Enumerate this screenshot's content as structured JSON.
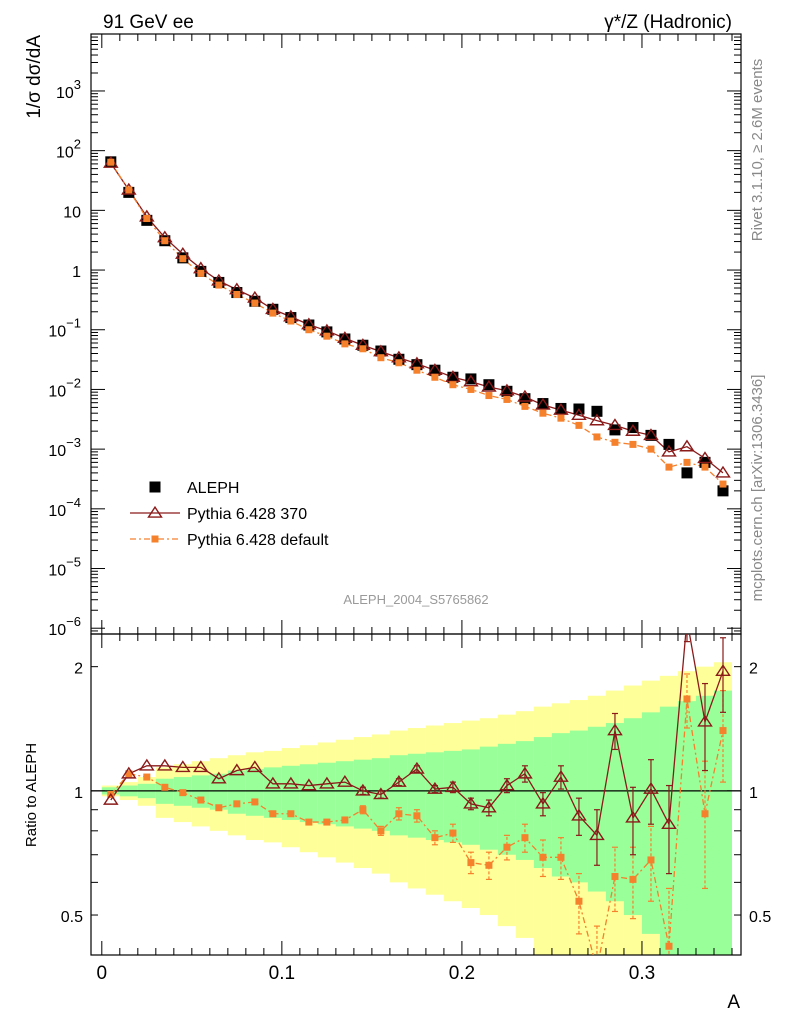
{
  "header": {
    "left": "91 GeV ee",
    "right": "γ*/Z (Hadronic)"
  },
  "side_labels": {
    "rivet": "Rivet 3.1.10, ≥ 2.6M events",
    "mcplots": "mcplots.cern.ch [arXiv:1306.3436]"
  },
  "analysis_id": "ALEPH_2004_S5765862",
  "chart_data": [
    {
      "type": "scatter",
      "title": "",
      "xlabel": "A",
      "ylabel": "1/σ  dσ/dA",
      "yscale": "log",
      "xlim": [
        -0.006,
        0.355
      ],
      "ylim": [
        8e-07,
        9000
      ],
      "yticks": [
        {
          "value": 1e-06,
          "label": "10",
          "exp": "−6"
        },
        {
          "value": 1e-05,
          "label": "10",
          "exp": "−5"
        },
        {
          "value": 0.0001,
          "label": "10",
          "exp": "−4"
        },
        {
          "value": 0.001,
          "label": "10",
          "exp": "−3"
        },
        {
          "value": 0.01,
          "label": "10",
          "exp": "−2"
        },
        {
          "value": 0.1,
          "label": "10",
          "exp": "−1"
        },
        {
          "value": 1,
          "label": "1",
          "exp": ""
        },
        {
          "value": 10,
          "label": "10",
          "exp": ""
        },
        {
          "value": 100,
          "label": "10",
          "exp": "2"
        },
        {
          "value": 1000,
          "label": "10",
          "exp": "3"
        }
      ],
      "legend_position": "lower-left",
      "x": [
        0.005,
        0.015,
        0.025,
        0.035,
        0.045,
        0.055,
        0.065,
        0.075,
        0.085,
        0.095,
        0.105,
        0.115,
        0.125,
        0.135,
        0.145,
        0.155,
        0.165,
        0.175,
        0.185,
        0.195,
        0.205,
        0.215,
        0.225,
        0.235,
        0.245,
        0.255,
        0.265,
        0.275,
        0.285,
        0.295,
        0.305,
        0.315,
        0.325,
        0.335,
        0.345
      ],
      "series": [
        {
          "name": "ALEPH",
          "marker": "square",
          "color": "#000000",
          "values": [
            65,
            20,
            6.8,
            3.1,
            1.6,
            0.95,
            0.62,
            0.42,
            0.3,
            0.22,
            0.16,
            0.12,
            0.092,
            0.07,
            0.055,
            0.044,
            0.032,
            0.026,
            0.021,
            0.016,
            0.015,
            0.012,
            0.0093,
            0.007,
            0.0058,
            0.0048,
            0.0047,
            0.0043,
            0.0021,
            0.0023,
            0.0017,
            0.0012,
            0.0004,
            0.0006,
            0.0002
          ]
        },
        {
          "name": "Pythia 6.428 370",
          "marker": "open-triangle",
          "color": "#8b1a1a",
          "values": [
            62,
            22,
            7.8,
            3.5,
            1.85,
            1.06,
            0.66,
            0.47,
            0.34,
            0.22,
            0.165,
            0.122,
            0.096,
            0.072,
            0.055,
            0.043,
            0.034,
            0.027,
            0.021,
            0.016,
            0.0135,
            0.011,
            0.0095,
            0.0075,
            0.0055,
            0.0045,
            0.0037,
            0.003,
            0.0025,
            0.002,
            0.0017,
            0.0009,
            0.0011,
            0.0007,
            0.0004
          ]
        },
        {
          "name": "Pythia 6.428 default",
          "marker": "filled-square-dashed",
          "color": "#f5812d",
          "values": [
            64,
            22,
            7.3,
            3.1,
            1.55,
            0.88,
            0.56,
            0.39,
            0.28,
            0.19,
            0.14,
            0.1,
            0.078,
            0.058,
            0.048,
            0.034,
            0.028,
            0.021,
            0.016,
            0.012,
            0.01,
            0.0079,
            0.0068,
            0.0052,
            0.004,
            0.0033,
            0.0025,
            0.0016,
            0.0013,
            0.0012,
            0.001,
            0.0005,
            0.0006,
            0.0005,
            0.00026
          ]
        }
      ]
    },
    {
      "type": "scatter",
      "title": "",
      "xlabel": "A",
      "ylabel": "Ratio to ALEPH",
      "yscale": "log",
      "xlim": [
        -0.006,
        0.355
      ],
      "ylim": [
        0.4,
        2.4
      ],
      "xticks": [
        {
          "value": 0,
          "label": "0"
        },
        {
          "value": 0.1,
          "label": "0.1"
        },
        {
          "value": 0.2,
          "label": "0.2"
        },
        {
          "value": 0.3,
          "label": "0.3"
        }
      ],
      "yticks": [
        {
          "value": 0.5,
          "label": "0.5"
        },
        {
          "value": 1,
          "label": "1"
        },
        {
          "value": 2,
          "label": "2"
        }
      ],
      "bin_edges": [
        0,
        0.01,
        0.02,
        0.03,
        0.04,
        0.05,
        0.06,
        0.07,
        0.08,
        0.09,
        0.1,
        0.11,
        0.12,
        0.13,
        0.14,
        0.15,
        0.16,
        0.17,
        0.18,
        0.19,
        0.2,
        0.21,
        0.22,
        0.23,
        0.24,
        0.25,
        0.26,
        0.27,
        0.28,
        0.29,
        0.3,
        0.31,
        0.32,
        0.33,
        0.34,
        0.35
      ],
      "bands": {
        "inner_color": "#99ff99",
        "outer_color": "#ffff99",
        "inner": [
          0.02,
          0.03,
          0.04,
          0.07,
          0.08,
          0.09,
          0.1,
          0.12,
          0.13,
          0.14,
          0.15,
          0.16,
          0.17,
          0.18,
          0.19,
          0.2,
          0.22,
          0.23,
          0.24,
          0.25,
          0.26,
          0.28,
          0.3,
          0.32,
          0.35,
          0.38,
          0.4,
          0.43,
          0.46,
          0.5,
          0.55,
          0.6,
          0.65,
          0.7,
          0.75
        ],
        "outer": [
          0.03,
          0.05,
          0.08,
          0.14,
          0.16,
          0.18,
          0.2,
          0.22,
          0.24,
          0.25,
          0.27,
          0.29,
          0.31,
          0.33,
          0.35,
          0.37,
          0.4,
          0.42,
          0.44,
          0.46,
          0.48,
          0.5,
          0.53,
          0.56,
          0.6,
          0.63,
          0.66,
          0.7,
          0.75,
          0.8,
          0.85,
          0.9,
          0.95,
          1.0,
          1.05
        ]
      },
      "series": [
        {
          "name": "Pythia 6.428 370",
          "color": "#8b1a1a",
          "values": [
            0.95,
            1.1,
            1.15,
            1.15,
            1.14,
            1.14,
            1.07,
            1.12,
            1.14,
            1.04,
            1.04,
            1.03,
            1.04,
            1.05,
            1.0,
            0.98,
            1.05,
            1.13,
            1.01,
            1.02,
            0.93,
            0.91,
            1.03,
            1.1,
            0.93,
            1.08,
            0.87,
            0.78,
            1.4,
            0.86,
            1.01,
            0.83,
            2.6,
            1.47,
            1.95
          ],
          "errors": [
            0.01,
            0.01,
            0.01,
            0.01,
            0.01,
            0.01,
            0.01,
            0.01,
            0.01,
            0.01,
            0.01,
            0.01,
            0.01,
            0.01,
            0.02,
            0.02,
            0.02,
            0.02,
            0.02,
            0.03,
            0.03,
            0.04,
            0.04,
            0.05,
            0.06,
            0.07,
            0.09,
            0.12,
            0.14,
            0.16,
            0.18,
            0.2,
            0.3,
            0.35,
            0.4
          ]
        },
        {
          "name": "Pythia 6.428 default",
          "color": "#f5812d",
          "values": [
            0.98,
            1.1,
            1.08,
            1.02,
            0.99,
            0.95,
            0.91,
            0.93,
            0.94,
            0.88,
            0.88,
            0.84,
            0.84,
            0.85,
            0.9,
            0.8,
            0.88,
            0.87,
            0.77,
            0.79,
            0.67,
            0.66,
            0.73,
            0.77,
            0.69,
            0.69,
            0.54,
            0.37,
            0.62,
            0.61,
            0.68,
            0.42,
            1.67,
            0.88,
            1.4
          ],
          "errors": [
            0.01,
            0.01,
            0.01,
            0.01,
            0.01,
            0.01,
            0.01,
            0.01,
            0.01,
            0.01,
            0.01,
            0.01,
            0.01,
            0.01,
            0.02,
            0.02,
            0.03,
            0.03,
            0.03,
            0.04,
            0.04,
            0.05,
            0.05,
            0.06,
            0.07,
            0.08,
            0.09,
            0.1,
            0.11,
            0.12,
            0.14,
            0.16,
            0.25,
            0.3,
            0.35
          ]
        }
      ]
    }
  ]
}
